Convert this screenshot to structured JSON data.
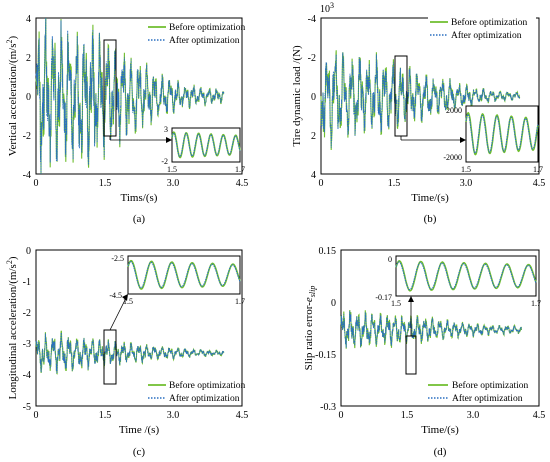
{
  "colors": {
    "before": "#6fbe2e",
    "after": "#2a6fc0"
  },
  "legend": {
    "before": "Before optimization",
    "after": "After optimization"
  },
  "chart_data": [
    {
      "id": "a",
      "type": "line",
      "caption": "(a)",
      "xlabel": "Tims/(s)",
      "ylabel": "Vertical acceleration/(m/s",
      "ylabel_sup": "2",
      "ylabel_tail": ")",
      "xlim": [
        0,
        4.5
      ],
      "ylim": [
        -4,
        4
      ],
      "xticks": [
        "0",
        "1.5",
        "3.0",
        "4.5"
      ],
      "yticks": [
        "-4",
        "-2",
        "0",
        "2",
        "4"
      ],
      "legend_position": "top-right",
      "series": [
        {
          "name": "Before optimization",
          "amplitude": [
            3.8,
            3.6,
            3.4,
            2.5,
            1.6,
            0.9,
            0.5,
            0.35
          ],
          "x_end": 4.1
        },
        {
          "name": "After optimization",
          "amplitude": [
            3.7,
            3.5,
            3.3,
            2.4,
            1.5,
            0.85,
            0.45,
            0.32
          ],
          "x_end": 4.1
        }
      ],
      "inset": {
        "xlim": [
          1.5,
          1.7
        ],
        "ylim": [
          -2,
          3
        ],
        "xticks": [
          "1.5",
          "1.7"
        ],
        "yticks_top": "3",
        "yticks_bottom": "-2"
      }
    },
    {
      "id": "b",
      "type": "line",
      "caption": "(b)",
      "xlabel": "Time/(s)",
      "ylabel": "Tire dynamic load /(N)",
      "y_exponent_base": "10",
      "y_exponent": "3",
      "xlim": [
        0,
        4.5
      ],
      "ylim": [
        -4,
        4
      ],
      "y_inverted": true,
      "xticks": [
        "0",
        "1.5",
        "3.0",
        "4.5"
      ],
      "yticks": [
        "-4",
        "-2",
        "0",
        "2",
        "4"
      ],
      "legend_position": "top-right",
      "series": [
        {
          "name": "Before optimization",
          "amplitude": [
            2.5,
            2.2,
            2.0,
            1.6,
            1.1,
            0.6,
            0.3,
            0.2
          ],
          "x_end": 4.1
        },
        {
          "name": "After optimization",
          "amplitude": [
            2.4,
            2.1,
            1.9,
            1.5,
            1.05,
            0.55,
            0.28,
            0.18
          ],
          "x_end": 4.1
        }
      ],
      "inset": {
        "xlim": [
          1.5,
          1.7
        ],
        "ylim": [
          -2000,
          2000
        ],
        "xticks": [
          "1.5",
          "1.7"
        ],
        "yticks_top": "2000",
        "yticks_bottom": "-2000"
      }
    },
    {
      "id": "c",
      "type": "line",
      "caption": "(c)",
      "xlabel": "Time /(s)",
      "ylabel": "Longitudinal acceleration/(m/s",
      "ylabel_sup": "2",
      "ylabel_tail": ")",
      "xlim": [
        0,
        4.5
      ],
      "ylim": [
        -5,
        0
      ],
      "xticks": [
        "0",
        "1.5",
        "3.0",
        "4.5"
      ],
      "yticks": [
        "-5",
        "-4",
        "-3",
        "-2",
        "-1",
        "0"
      ],
      "legend_position": "bottom-right",
      "baseline": -3.3,
      "series": [
        {
          "name": "Before optimization",
          "amplitude": [
            0.7,
            0.6,
            0.5,
            0.4,
            0.3,
            0.2,
            0.12,
            0.08
          ],
          "x_end": 4.1
        },
        {
          "name": "After optimization",
          "amplitude": [
            0.65,
            0.55,
            0.47,
            0.38,
            0.28,
            0.18,
            0.11,
            0.07
          ],
          "x_end": 4.1
        }
      ],
      "inset": {
        "xlim": [
          1.5,
          1.7
        ],
        "ylim": [
          -4.5,
          -2.5
        ],
        "xticks": [
          "1.5",
          "1.7"
        ],
        "yticks_top": "-2.5",
        "yticks_bottom": "-4.5"
      }
    },
    {
      "id": "d",
      "type": "line",
      "caption": "(d)",
      "xlabel": "Time/(s)",
      "ylabel": "Slip ratio error-",
      "ylabel_italic": "e",
      "ylabel_sub": "slip",
      "xlim": [
        0,
        4.5
      ],
      "ylim": [
        -0.3,
        0.15
      ],
      "xticks": [
        "0",
        "1.5",
        "3.0",
        "4.5"
      ],
      "yticks": [
        "-0.3",
        "-0.15",
        "0",
        "0.15"
      ],
      "legend_position": "bottom-right",
      "baseline": -0.08,
      "series": [
        {
          "name": "Before optimization",
          "amplitude": [
            0.06,
            0.05,
            0.045,
            0.04,
            0.03,
            0.02,
            0.015,
            0.012
          ],
          "x_end": 4.1
        },
        {
          "name": "After optimization",
          "amplitude": [
            0.055,
            0.045,
            0.04,
            0.035,
            0.027,
            0.018,
            0.013,
            0.01
          ],
          "x_end": 4.1
        }
      ],
      "inset": {
        "xlim": [
          1.5,
          1.7
        ],
        "ylim": [
          -0.17,
          0
        ],
        "xticks": [
          "1.5",
          "1.7"
        ],
        "yticks_top": "0",
        "yticks_bottom": "-0.17"
      }
    }
  ]
}
